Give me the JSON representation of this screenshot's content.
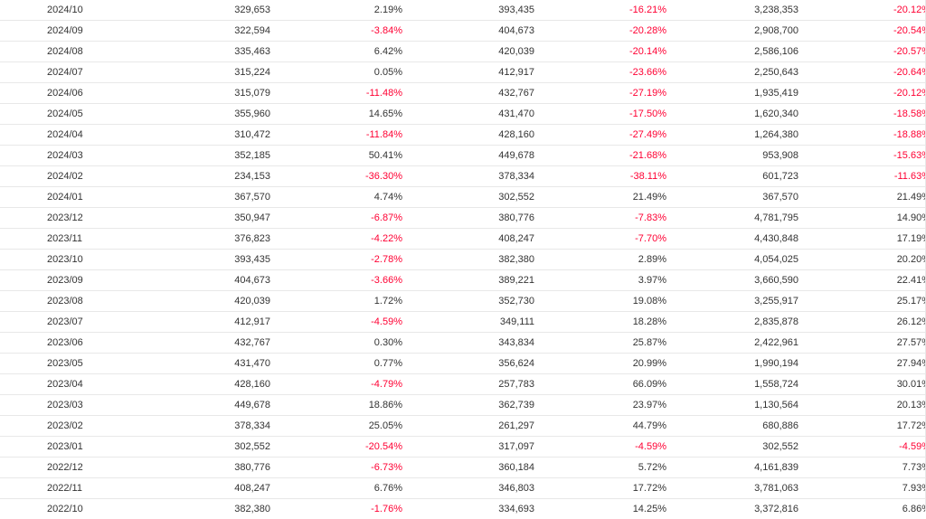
{
  "table": {
    "rows": [
      {
        "month": "2024/10",
        "v1": "329,653",
        "p1": "2.19%",
        "v2": "393,435",
        "p2": "-16.21%",
        "v3": "3,238,353",
        "p3": "-20.12%"
      },
      {
        "month": "2024/09",
        "v1": "322,594",
        "p1": "-3.84%",
        "v2": "404,673",
        "p2": "-20.28%",
        "v3": "2,908,700",
        "p3": "-20.54%"
      },
      {
        "month": "2024/08",
        "v1": "335,463",
        "p1": "6.42%",
        "v2": "420,039",
        "p2": "-20.14%",
        "v3": "2,586,106",
        "p3": "-20.57%"
      },
      {
        "month": "2024/07",
        "v1": "315,224",
        "p1": "0.05%",
        "v2": "412,917",
        "p2": "-23.66%",
        "v3": "2,250,643",
        "p3": "-20.64%"
      },
      {
        "month": "2024/06",
        "v1": "315,079",
        "p1": "-11.48%",
        "v2": "432,767",
        "p2": "-27.19%",
        "v3": "1,935,419",
        "p3": "-20.12%"
      },
      {
        "month": "2024/05",
        "v1": "355,960",
        "p1": "14.65%",
        "v2": "431,470",
        "p2": "-17.50%",
        "v3": "1,620,340",
        "p3": "-18.58%"
      },
      {
        "month": "2024/04",
        "v1": "310,472",
        "p1": "-11.84%",
        "v2": "428,160",
        "p2": "-27.49%",
        "v3": "1,264,380",
        "p3": "-18.88%"
      },
      {
        "month": "2024/03",
        "v1": "352,185",
        "p1": "50.41%",
        "v2": "449,678",
        "p2": "-21.68%",
        "v3": "953,908",
        "p3": "-15.63%"
      },
      {
        "month": "2024/02",
        "v1": "234,153",
        "p1": "-36.30%",
        "v2": "378,334",
        "p2": "-38.11%",
        "v3": "601,723",
        "p3": "-11.63%"
      },
      {
        "month": "2024/01",
        "v1": "367,570",
        "p1": "4.74%",
        "v2": "302,552",
        "p2": "21.49%",
        "v3": "367,570",
        "p3": "21.49%"
      },
      {
        "month": "2023/12",
        "v1": "350,947",
        "p1": "-6.87%",
        "v2": "380,776",
        "p2": "-7.83%",
        "v3": "4,781,795",
        "p3": "14.90%"
      },
      {
        "month": "2023/11",
        "v1": "376,823",
        "p1": "-4.22%",
        "v2": "408,247",
        "p2": "-7.70%",
        "v3": "4,430,848",
        "p3": "17.19%"
      },
      {
        "month": "2023/10",
        "v1": "393,435",
        "p1": "-2.78%",
        "v2": "382,380",
        "p2": "2.89%",
        "v3": "4,054,025",
        "p3": "20.20%"
      },
      {
        "month": "2023/09",
        "v1": "404,673",
        "p1": "-3.66%",
        "v2": "389,221",
        "p2": "3.97%",
        "v3": "3,660,590",
        "p3": "22.41%"
      },
      {
        "month": "2023/08",
        "v1": "420,039",
        "p1": "1.72%",
        "v2": "352,730",
        "p2": "19.08%",
        "v3": "3,255,917",
        "p3": "25.17%"
      },
      {
        "month": "2023/07",
        "v1": "412,917",
        "p1": "-4.59%",
        "v2": "349,111",
        "p2": "18.28%",
        "v3": "2,835,878",
        "p3": "26.12%"
      },
      {
        "month": "2023/06",
        "v1": "432,767",
        "p1": "0.30%",
        "v2": "343,834",
        "p2": "25.87%",
        "v3": "2,422,961",
        "p3": "27.57%"
      },
      {
        "month": "2023/05",
        "v1": "431,470",
        "p1": "0.77%",
        "v2": "356,624",
        "p2": "20.99%",
        "v3": "1,990,194",
        "p3": "27.94%"
      },
      {
        "month": "2023/04",
        "v1": "428,160",
        "p1": "-4.79%",
        "v2": "257,783",
        "p2": "66.09%",
        "v3": "1,558,724",
        "p3": "30.01%"
      },
      {
        "month": "2023/03",
        "v1": "449,678",
        "p1": "18.86%",
        "v2": "362,739",
        "p2": "23.97%",
        "v3": "1,130,564",
        "p3": "20.13%"
      },
      {
        "month": "2023/02",
        "v1": "378,334",
        "p1": "25.05%",
        "v2": "261,297",
        "p2": "44.79%",
        "v3": "680,886",
        "p3": "17.72%"
      },
      {
        "month": "2023/01",
        "v1": "302,552",
        "p1": "-20.54%",
        "v2": "317,097",
        "p2": "-4.59%",
        "v3": "302,552",
        "p3": "-4.59%"
      },
      {
        "month": "2022/12",
        "v1": "380,776",
        "p1": "-6.73%",
        "v2": "360,184",
        "p2": "5.72%",
        "v3": "4,161,839",
        "p3": "7.73%"
      },
      {
        "month": "2022/11",
        "v1": "408,247",
        "p1": "6.76%",
        "v2": "346,803",
        "p2": "17.72%",
        "v3": "3,781,063",
        "p3": "7.93%"
      },
      {
        "month": "2022/10",
        "v1": "382,380",
        "p1": "-1.76%",
        "v2": "334,693",
        "p2": "14.25%",
        "v3": "3,372,816",
        "p3": "6.86%"
      }
    ]
  },
  "colors": {
    "negative": "#ff0033",
    "text": "#333333",
    "border": "#e8e8e8"
  }
}
